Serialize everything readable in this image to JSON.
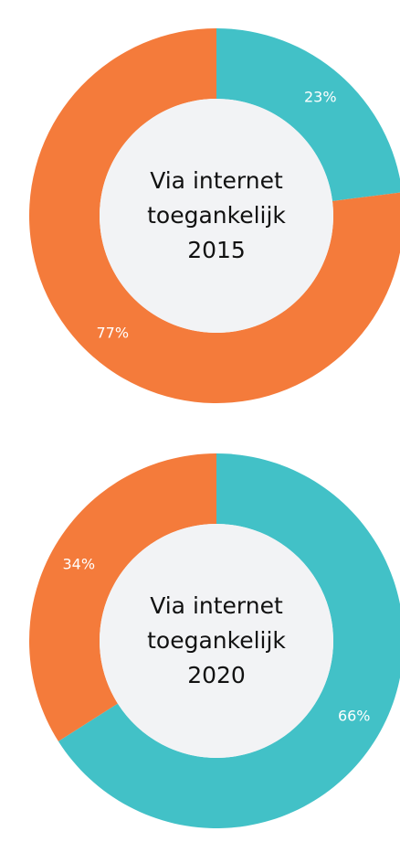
{
  "chart_data": [
    {
      "type": "pie",
      "title": "Via internet toegankelijk 2015",
      "values": [
        23,
        77
      ],
      "value_labels": [
        "23%",
        "77%"
      ],
      "colors": [
        "#42c1c7",
        "#f47b3b"
      ]
    },
    {
      "type": "pie",
      "title": "Via internet toegankelijk 2020",
      "values": [
        66,
        34
      ],
      "value_labels": [
        "66%",
        "34%"
      ],
      "colors": [
        "#42c1c7",
        "#f47b3b"
      ]
    }
  ]
}
